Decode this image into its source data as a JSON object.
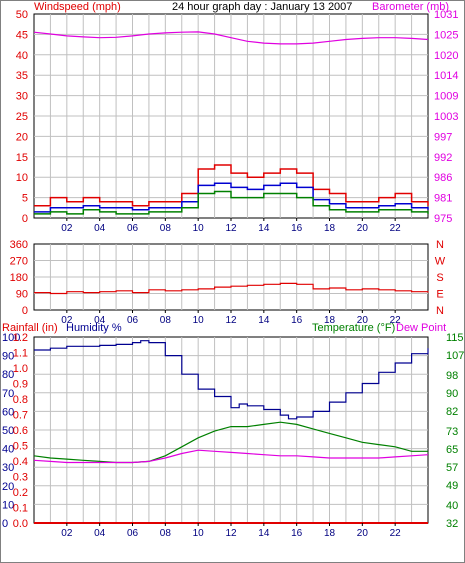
{
  "header": {
    "left_label": "Windspeed (mph)",
    "title": "24 hour graph day : January 13 2007",
    "right_label": "Barometer (mb)"
  },
  "colors": {
    "wind_gust": "#e00000",
    "wind_avg": "#0000d0",
    "wind_green": "#008000",
    "barometer": "#e000e0",
    "direction": "#e00000",
    "rain": "#e00000",
    "humidity": "#000090",
    "temperature": "#008000",
    "dew_point": "#e000e0",
    "grid": "#c0c0c0"
  },
  "chart_data": [
    {
      "id": "wind",
      "type": "line",
      "x_ticks": [
        "02",
        "04",
        "06",
        "08",
        "10",
        "12",
        "14",
        "16",
        "18",
        "20",
        "22"
      ],
      "y_left": {
        "label": "Windspeed (mph)",
        "ticks": [
          0,
          5,
          10,
          15,
          20,
          25,
          30,
          35,
          40,
          45,
          50
        ],
        "ylim": [
          0,
          50
        ]
      },
      "y_right": {
        "label": "Barometer (mb)",
        "ticks": [
          "975",
          "981",
          "986",
          "992",
          "997",
          "1003",
          "1009",
          "1014",
          "1020",
          "1025",
          "1031"
        ],
        "ylim": [
          975,
          1031
        ]
      },
      "grid": true,
      "series": [
        {
          "key": "gust",
          "color_key": "wind_gust",
          "x": [
            0.0,
            1.0,
            2.0,
            3.0,
            4.0,
            5.0,
            6.0,
            7.0,
            8.0,
            9.0,
            10.0,
            11.0,
            12.0,
            13.0,
            14.0,
            15.0,
            16.0,
            17.0,
            18.0,
            19.0,
            20.0,
            21.0,
            22.0,
            23.0,
            24.0
          ],
          "values": [
            3,
            5,
            4,
            5,
            4,
            4,
            3,
            4,
            4,
            6,
            12,
            13,
            11,
            10,
            11,
            12,
            11,
            7,
            6,
            4,
            4,
            5,
            6,
            4,
            3
          ]
        },
        {
          "key": "average",
          "color_key": "wind_avg",
          "x": [
            0.0,
            1.0,
            2.0,
            3.0,
            4.0,
            5.0,
            6.0,
            7.0,
            8.0,
            9.0,
            10.0,
            11.0,
            12.0,
            13.0,
            14.0,
            15.0,
            16.0,
            17.0,
            18.0,
            19.0,
            20.0,
            21.0,
            22.0,
            23.0,
            24.0
          ],
          "values": [
            1.5,
            2.5,
            2.5,
            3,
            2.5,
            2.5,
            2,
            2.5,
            2.5,
            4,
            8,
            8.5,
            7.5,
            7,
            8,
            8.5,
            7.5,
            4.5,
            3.5,
            2.5,
            2.5,
            3,
            3.5,
            2.5,
            2
          ]
        },
        {
          "key": "wind_green",
          "color_key": "wind_green",
          "x": [
            0.0,
            1.0,
            2.0,
            3.0,
            4.0,
            5.0,
            6.0,
            7.0,
            8.0,
            9.0,
            10.0,
            11.0,
            12.0,
            13.0,
            14.0,
            15.0,
            16.0,
            17.0,
            18.0,
            19.0,
            20.0,
            21.0,
            22.0,
            23.0,
            24.0
          ],
          "values": [
            1,
            1.5,
            1,
            2,
            1.5,
            1,
            1,
            1.5,
            1.5,
            2.5,
            6,
            6.5,
            5,
            5,
            6,
            6,
            5,
            3,
            2,
            1.5,
            1.5,
            2,
            2,
            1.5,
            1
          ]
        },
        {
          "key": "barometer",
          "axis": "right",
          "color_key": "barometer",
          "x": [
            0.0,
            1.0,
            2.0,
            3.0,
            4.0,
            5.0,
            6.0,
            7.0,
            8.0,
            9.0,
            10.0,
            11.0,
            12.0,
            13.0,
            14.0,
            15.0,
            16.0,
            17.0,
            18.0,
            19.0,
            20.0,
            21.0,
            22.0,
            23.0,
            24.0
          ],
          "values": [
            1026,
            1025.5,
            1025,
            1024.7,
            1024.5,
            1024.6,
            1025,
            1025.5,
            1025.8,
            1026,
            1026.1,
            1025.5,
            1024.5,
            1023.5,
            1023,
            1022.8,
            1022.8,
            1023,
            1023.5,
            1024,
            1024.3,
            1024.5,
            1024.5,
            1024.3,
            1024
          ]
        }
      ]
    },
    {
      "id": "direction",
      "type": "line",
      "x_ticks": [
        "02",
        "04",
        "06",
        "08",
        "10",
        "12",
        "14",
        "16",
        "18",
        "20",
        "22"
      ],
      "y_left": {
        "ticks": [
          0,
          90,
          180,
          270,
          360
        ],
        "ylim": [
          0,
          360
        ]
      },
      "compass_labels": [
        "N",
        "W",
        "S",
        "E",
        "N"
      ],
      "grid": true,
      "series": [
        {
          "key": "direction",
          "color_key": "direction",
          "x": [
            0.0,
            1.0,
            2.0,
            3.0,
            4.0,
            5.0,
            6.0,
            7.0,
            8.0,
            9.0,
            10.0,
            11.0,
            12.0,
            13.0,
            14.0,
            15.0,
            16.0,
            17.0,
            18.0,
            19.0,
            20.0,
            21.0,
            22.0,
            23.0,
            24.0
          ],
          "values": [
            95,
            90,
            100,
            95,
            100,
            105,
            95,
            110,
            105,
            110,
            115,
            125,
            130,
            135,
            140,
            145,
            140,
            115,
            120,
            110,
            115,
            110,
            105,
            100,
            95
          ]
        }
      ]
    },
    {
      "id": "weather",
      "type": "line",
      "x_ticks": [
        "02",
        "04",
        "06",
        "08",
        "10",
        "12",
        "14",
        "16",
        "18",
        "20",
        "22"
      ],
      "left_labels": [
        "Rainfall (in)",
        "Humidity %"
      ],
      "right_labels": [
        "Temperature (°F)",
        "Dew Point"
      ],
      "humidity_axis": {
        "ticks": [
          0,
          10,
          20,
          30,
          40,
          50,
          60,
          70,
          80,
          90,
          100
        ],
        "ylim": [
          0,
          100
        ]
      },
      "rain_axis": {
        "ticks": [
          "0.0",
          "0.1",
          "0.2",
          "0.3",
          "0.4",
          "0.5",
          "0.6",
          "0.7",
          "0.8",
          "0.9",
          "1.0",
          "1.1",
          "1.2"
        ]
      },
      "temp_axis": {
        "ticks": [
          32,
          40,
          49,
          57,
          65,
          73,
          82,
          90,
          98,
          107,
          115
        ],
        "ylim": [
          32,
          115
        ]
      },
      "grid": true,
      "series": [
        {
          "key": "humidity",
          "color_key": "humidity",
          "x": [
            0.0,
            1.0,
            2.0,
            3.0,
            4.0,
            5.0,
            6.0,
            6.5,
            7.0,
            8.0,
            9.0,
            10.0,
            11.0,
            12.0,
            12.5,
            13.0,
            14.0,
            15.0,
            15.5,
            16.0,
            17.0,
            18.0,
            19.0,
            20.0,
            21.0,
            22.0,
            23.0,
            24.0
          ],
          "values": [
            93,
            94,
            95,
            95,
            95.5,
            96,
            97,
            98,
            97,
            90,
            80,
            72,
            68,
            62,
            64,
            63,
            61,
            58,
            56,
            57,
            60,
            65,
            70,
            75,
            81,
            86,
            91,
            94
          ]
        },
        {
          "key": "temperature",
          "axis": "right",
          "color_key": "temperature",
          "x": [
            0.0,
            1.0,
            2.0,
            3.0,
            4.0,
            5.0,
            6.0,
            7.0,
            8.0,
            9.0,
            10.0,
            11.0,
            12.0,
            13.0,
            14.0,
            15.0,
            16.0,
            17.0,
            18.0,
            19.0,
            20.0,
            21.0,
            22.0,
            23.0,
            24.0
          ],
          "values": [
            62,
            61,
            60.5,
            60,
            59.5,
            59,
            59,
            59.5,
            62,
            66,
            70,
            73,
            75,
            75,
            76,
            77,
            76,
            74,
            72,
            70,
            68,
            67,
            66,
            64,
            64
          ]
        },
        {
          "key": "dew_point",
          "axis": "right",
          "color_key": "dew_point",
          "x": [
            0.0,
            1.0,
            2.0,
            3.0,
            4.0,
            5.0,
            6.0,
            7.0,
            8.0,
            9.0,
            10.0,
            11.0,
            12.0,
            13.0,
            14.0,
            15.0,
            16.0,
            17.0,
            18.0,
            19.0,
            20.0,
            21.0,
            22.0,
            23.0,
            24.0
          ],
          "values": [
            60,
            59.5,
            59,
            59,
            59,
            59,
            59,
            59.5,
            61,
            63,
            64.5,
            64,
            63.5,
            63,
            62.5,
            62,
            62,
            61.5,
            61,
            61,
            61,
            61,
            61.5,
            62,
            62.5
          ]
        },
        {
          "key": "rainfall",
          "color_key": "rain",
          "x": [
            0,
            24
          ],
          "values": [
            0,
            0
          ]
        }
      ]
    }
  ]
}
